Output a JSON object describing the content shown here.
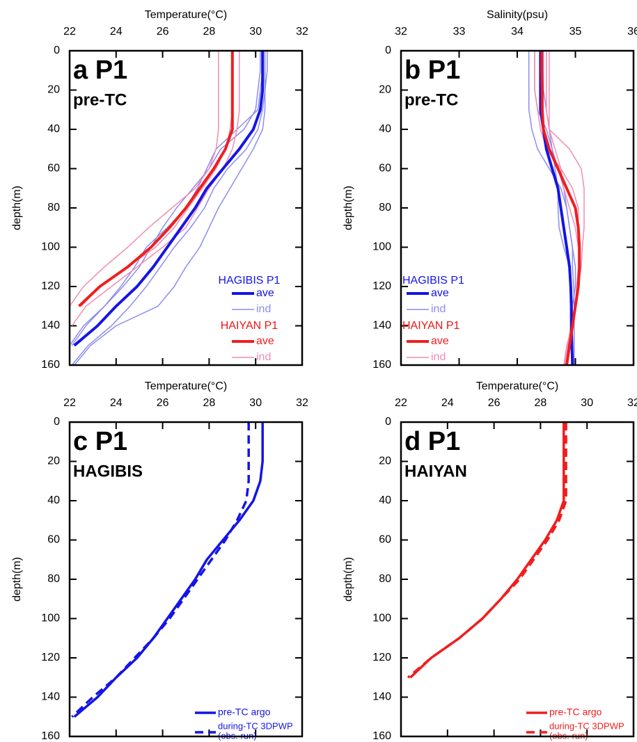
{
  "chart_data": [
    {
      "type": "line",
      "panel_label": "a P1",
      "subtitle": "pre-TC",
      "xlabel": "Temperature(°C)",
      "ylabel": "depth(m)",
      "xlim": [
        22,
        32
      ],
      "xticks": [
        22,
        24,
        26,
        28,
        30,
        32
      ],
      "ylim": [
        0,
        160
      ],
      "yticks": [
        0,
        20,
        40,
        60,
        80,
        100,
        120,
        140,
        160
      ],
      "legend": "lower right",
      "depth": [
        0,
        10,
        20,
        30,
        40,
        50,
        60,
        70,
        80,
        90,
        100,
        110,
        120,
        130,
        140,
        150,
        160
      ],
      "legend_groups": [
        {
          "title": "HAGIBIS P1",
          "color": "#1414f0",
          "series": [
            {
              "name": "ave",
              "color": "#1414e6",
              "width": 4,
              "values": [
                30.3,
                30.3,
                30.3,
                30.2,
                29.9,
                29.3,
                28.6,
                27.9,
                27.4,
                26.8,
                26.2,
                25.6,
                24.9,
                24.0,
                23.2,
                22.2,
                null
              ]
            },
            {
              "name": "ind",
              "color": "#8c8cf0",
              "width": 1.5,
              "profiles": [
                [
                  30.4,
                  30.4,
                  30.4,
                  30.3,
                  30.1,
                  29.6,
                  28.8,
                  28.2,
                  27.8,
                  27.2,
                  26.5,
                  25.9,
                  25.3,
                  24.6,
                  23.8,
                  22.8,
                  22.1
                ],
                [
                  30.2,
                  30.2,
                  30.1,
                  30.0,
                  29.5,
                  28.5,
                  28.0,
                  27.3,
                  26.6,
                  26.0,
                  25.5,
                  25.0,
                  24.3,
                  23.5,
                  22.7,
                  22.1,
                  null
                ],
                [
                  30.5,
                  30.5,
                  30.4,
                  30.4,
                  30.3,
                  29.9,
                  29.4,
                  28.9,
                  28.4,
                  28.0,
                  27.6,
                  27.0,
                  26.5,
                  25.8,
                  24.0,
                  22.9,
                  22.2
                ],
                [
                  30.3,
                  30.3,
                  30.2,
                  30.1,
                  29.2,
                  28.3,
                  27.9,
                  27.5,
                  27.0,
                  26.2,
                  25.3,
                  24.8,
                  24.2,
                  23.5,
                  22.6,
                  22.0,
                  null
                ]
              ]
            }
          ]
        },
        {
          "title": "HAIYAN P1",
          "color": "#f01414",
          "series": [
            {
              "name": "ave",
              "color": "#f01e1e",
              "width": 4,
              "values": [
                29.0,
                29.0,
                29.0,
                29.0,
                29.0,
                28.7,
                28.2,
                27.6,
                27.0,
                26.3,
                25.5,
                24.5,
                23.3,
                22.4,
                null,
                null,
                null
              ]
            },
            {
              "name": "ind",
              "color": "#f08cb4",
              "width": 1.5,
              "profiles": [
                [
                  28.4,
                  28.4,
                  28.4,
                  28.4,
                  28.4,
                  28.3,
                  28.0,
                  27.4,
                  26.4,
                  25.4,
                  24.5,
                  23.5,
                  22.6,
                  22.0,
                  null,
                  null,
                  null
                ],
                [
                  29.0,
                  29.0,
                  29.0,
                  29.0,
                  28.9,
                  28.7,
                  28.3,
                  27.7,
                  27.1,
                  26.5,
                  25.7,
                  24.5,
                  23.3,
                  22.5,
                  null,
                  null,
                  null
                ],
                [
                  29.3,
                  29.3,
                  29.3,
                  29.3,
                  29.2,
                  29.0,
                  28.6,
                  28.0,
                  27.5,
                  27.0,
                  26.0,
                  24.9,
                  23.8,
                  22.7,
                  22.1,
                  null,
                  null
                ]
              ]
            }
          ]
        }
      ]
    },
    {
      "type": "line",
      "panel_label": "b P1",
      "subtitle": "pre-TC",
      "xlabel": "Salinity(psu)",
      "ylabel": "depth(m)",
      "xlim": [
        32,
        36
      ],
      "xticks": [
        32,
        33,
        34,
        35,
        36
      ],
      "ylim": [
        0,
        160
      ],
      "yticks": [
        0,
        20,
        40,
        60,
        80,
        100,
        120,
        140,
        160
      ],
      "legend": "lower left",
      "depth": [
        0,
        10,
        20,
        30,
        40,
        50,
        60,
        70,
        80,
        90,
        100,
        110,
        120,
        130,
        140,
        150,
        160
      ],
      "legend_groups": [
        {
          "title": "HAGIBIS P1",
          "color": "#1414f0",
          "series": [
            {
              "name": "ave",
              "color": "#1414e6",
              "width": 4,
              "values": [
                34.4,
                34.4,
                34.4,
                34.4,
                34.45,
                34.5,
                34.6,
                34.7,
                34.75,
                34.8,
                34.85,
                34.9,
                34.92,
                34.93,
                34.93,
                34.94,
                34.95
              ]
            },
            {
              "name": "ind",
              "color": "#8c8cf0",
              "width": 1.5,
              "profiles": [
                [
                  34.2,
                  34.2,
                  34.2,
                  34.2,
                  34.25,
                  34.35,
                  34.55,
                  34.75,
                  34.85,
                  34.9,
                  34.95,
                  34.95,
                  34.97,
                  34.98,
                  34.98,
                  34.98,
                  34.98
                ],
                [
                  34.3,
                  34.3,
                  34.3,
                  34.35,
                  34.5,
                  34.6,
                  34.65,
                  34.7,
                  34.7,
                  34.72,
                  34.8,
                  34.9,
                  34.92,
                  34.95,
                  34.95,
                  34.95,
                  34.96
                ],
                [
                  34.45,
                  34.45,
                  34.45,
                  34.5,
                  34.55,
                  34.6,
                  34.7,
                  34.8,
                  34.85,
                  34.9,
                  34.95,
                  35.0,
                  35.0,
                  34.95,
                  34.95,
                  34.95,
                  34.96
                ]
              ]
            }
          ]
        },
        {
          "title": "HAIYAN P1",
          "color": "#f01414",
          "series": [
            {
              "name": "ave",
              "color": "#f01e1e",
              "width": 4,
              "values": [
                34.42,
                34.42,
                34.43,
                34.43,
                34.45,
                34.55,
                34.7,
                34.85,
                35.0,
                35.05,
                35.07,
                35.07,
                35.05,
                35.0,
                34.95,
                34.9,
                34.85
              ]
            },
            {
              "name": "ind",
              "color": "#f08cb4",
              "width": 1.5,
              "profiles": [
                [
                  34.55,
                  34.55,
                  34.55,
                  34.55,
                  34.55,
                  34.9,
                  35.1,
                  35.15,
                  35.15,
                  35.15,
                  35.12,
                  35.1,
                  35.05,
                  35.0,
                  34.95,
                  34.9,
                  34.85
                ],
                [
                  34.3,
                  34.3,
                  34.3,
                  34.35,
                  34.4,
                  34.5,
                  34.75,
                  34.95,
                  35.05,
                  35.05,
                  35.08,
                  35.05,
                  35.02,
                  35.0,
                  34.95,
                  34.85,
                  34.8
                ],
                [
                  34.5,
                  34.5,
                  34.5,
                  34.5,
                  34.55,
                  34.65,
                  34.75,
                  34.8,
                  34.9,
                  35.0,
                  35.05,
                  35.05,
                  35.05,
                  35.0,
                  34.92,
                  34.87,
                  34.82
                ]
              ]
            }
          ]
        }
      ]
    },
    {
      "type": "line",
      "panel_label": "c P1",
      "subtitle": "HAGIBIS",
      "xlabel": "Temperature(°C)",
      "ylabel": "depth(m)",
      "xlim": [
        22,
        32
      ],
      "xticks": [
        22,
        24,
        26,
        28,
        30,
        32
      ],
      "ylim": [
        0,
        160
      ],
      "yticks": [
        0,
        20,
        40,
        60,
        80,
        100,
        120,
        140,
        160
      ],
      "legend": "lower right",
      "depth": [
        0,
        10,
        20,
        30,
        40,
        50,
        60,
        70,
        80,
        90,
        100,
        110,
        120,
        130,
        140,
        150,
        160
      ],
      "series": [
        {
          "name": [
            "pre-TC argo"
          ],
          "color": "#1414e6",
          "style": "solid",
          "values": [
            30.3,
            30.3,
            30.3,
            30.2,
            29.9,
            29.3,
            28.6,
            27.9,
            27.4,
            26.8,
            26.2,
            25.6,
            24.9,
            24.0,
            23.2,
            22.2,
            null
          ]
        },
        {
          "name": [
            "during-TC 3DPWP",
            "(obs. run)"
          ],
          "color": "#1414e6",
          "style": "dashed",
          "values": [
            29.7,
            29.7,
            29.7,
            29.7,
            29.6,
            29.2,
            28.7,
            28.1,
            27.5,
            26.9,
            26.3,
            25.6,
            24.8,
            24.0,
            23.0,
            22.1,
            null
          ]
        }
      ]
    },
    {
      "type": "line",
      "panel_label": "d P1",
      "subtitle": "HAIYAN",
      "xlabel": "Temperature(°C)",
      "ylabel": "depth(m)",
      "xlim": [
        22,
        32
      ],
      "xticks": [
        22,
        24,
        26,
        28,
        30,
        32
      ],
      "ylim": [
        0,
        160
      ],
      "yticks": [
        0,
        20,
        40,
        60,
        80,
        100,
        120,
        140,
        160
      ],
      "legend": "lower right",
      "depth": [
        0,
        10,
        20,
        30,
        40,
        50,
        60,
        70,
        80,
        90,
        100,
        110,
        120,
        130,
        140,
        150,
        160
      ],
      "series": [
        {
          "name": [
            "pre-TC argo"
          ],
          "color": "#f01e1e",
          "style": "solid",
          "values": [
            29.0,
            29.0,
            29.0,
            29.0,
            29.0,
            28.7,
            28.2,
            27.6,
            27.0,
            26.3,
            25.5,
            24.5,
            23.3,
            22.4,
            null,
            null,
            null
          ]
        },
        {
          "name": [
            "during-TC 3DPWP",
            "(obs. run)"
          ],
          "color": "#f01e1e",
          "style": "dashed",
          "values": [
            29.1,
            29.1,
            29.1,
            29.1,
            29.1,
            28.8,
            28.3,
            27.7,
            27.1,
            26.3,
            25.5,
            24.5,
            23.3,
            22.3,
            null,
            null,
            null
          ]
        }
      ]
    }
  ]
}
